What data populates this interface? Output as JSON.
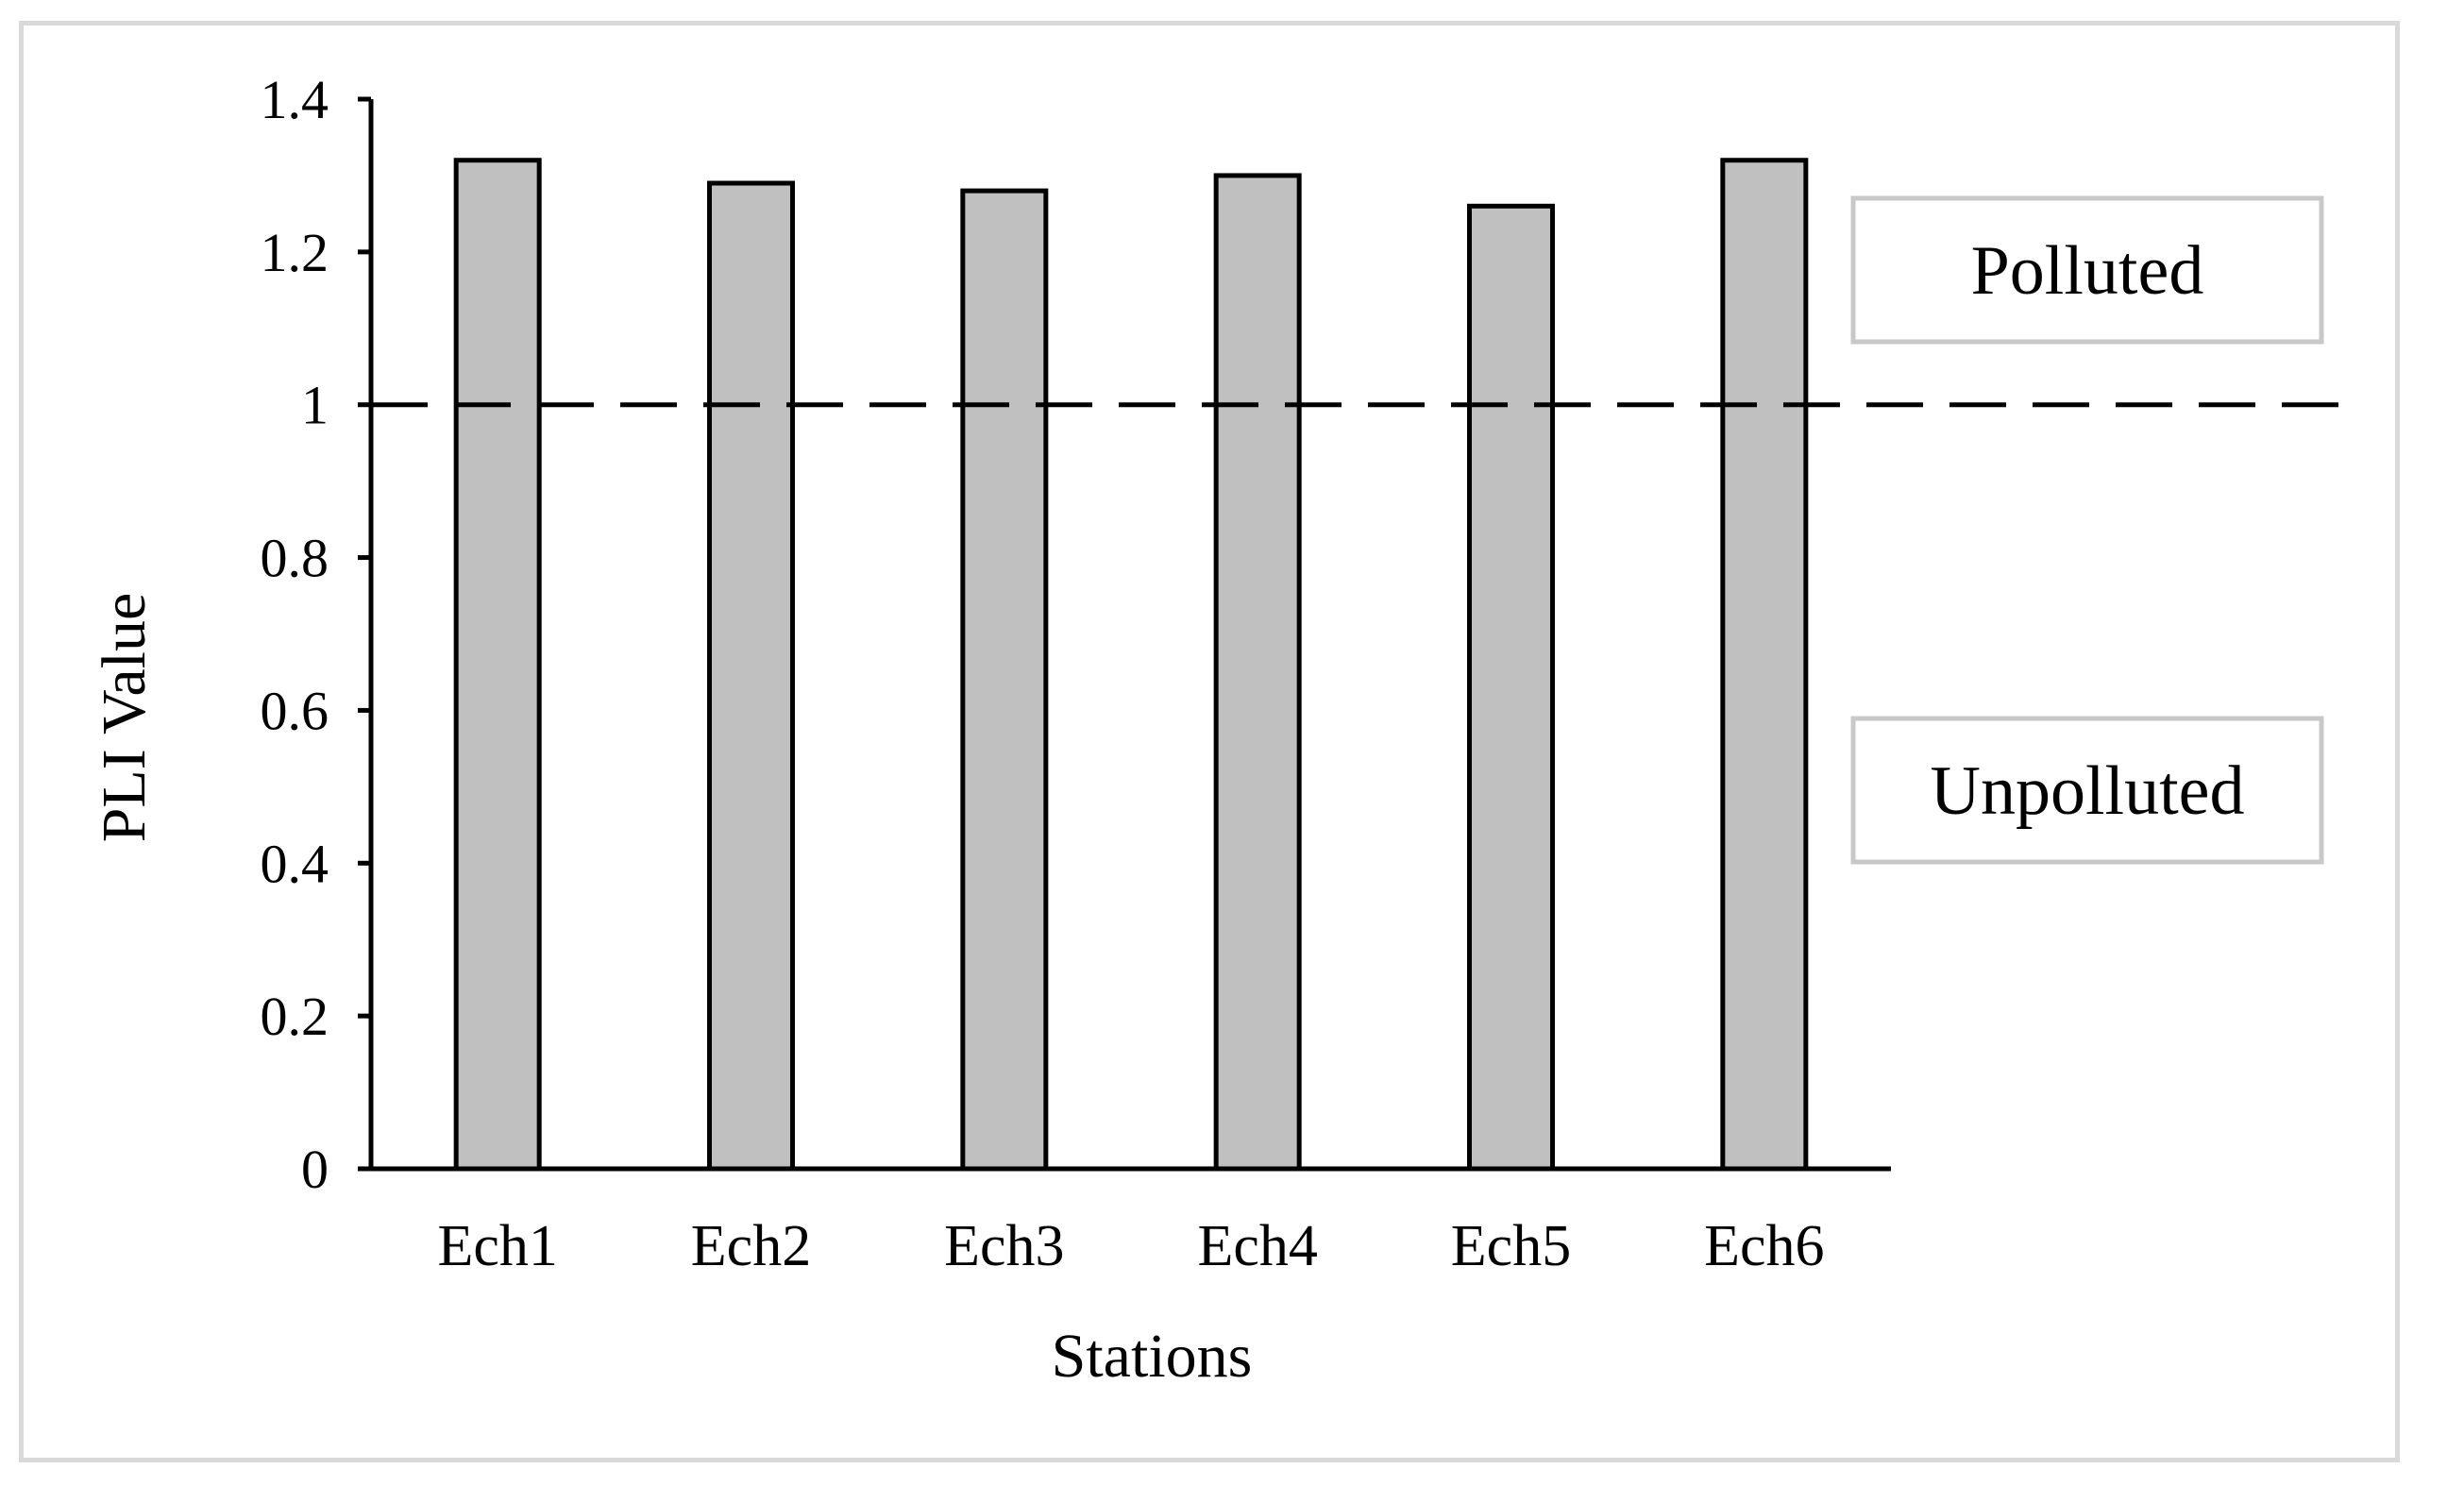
{
  "chart_data": {
    "type": "bar",
    "categories": [
      "Ech1",
      "Ech2",
      "Ech3",
      "Ech4",
      "Ech5",
      "Ech6"
    ],
    "values": [
      1.32,
      1.29,
      1.28,
      1.3,
      1.26,
      1.32
    ],
    "title": "",
    "xlabel": "Stations",
    "ylabel": "PLI Value",
    "ylim": [
      0,
      1.4
    ],
    "yticks": [
      "0",
      "0.2",
      "0.4",
      "0.6",
      "0.8",
      "1",
      "1.2",
      "1.4"
    ],
    "ytick_values": [
      0,
      0.2,
      0.4,
      0.6,
      0.8,
      1,
      1.2,
      1.4
    ],
    "threshold": 1,
    "threshold_style": "dashed",
    "zone_labels": {
      "above": "Polluted",
      "below": "Unpolluted"
    },
    "bar_color": "#c0c0c0",
    "grid": false,
    "legend": "none"
  }
}
